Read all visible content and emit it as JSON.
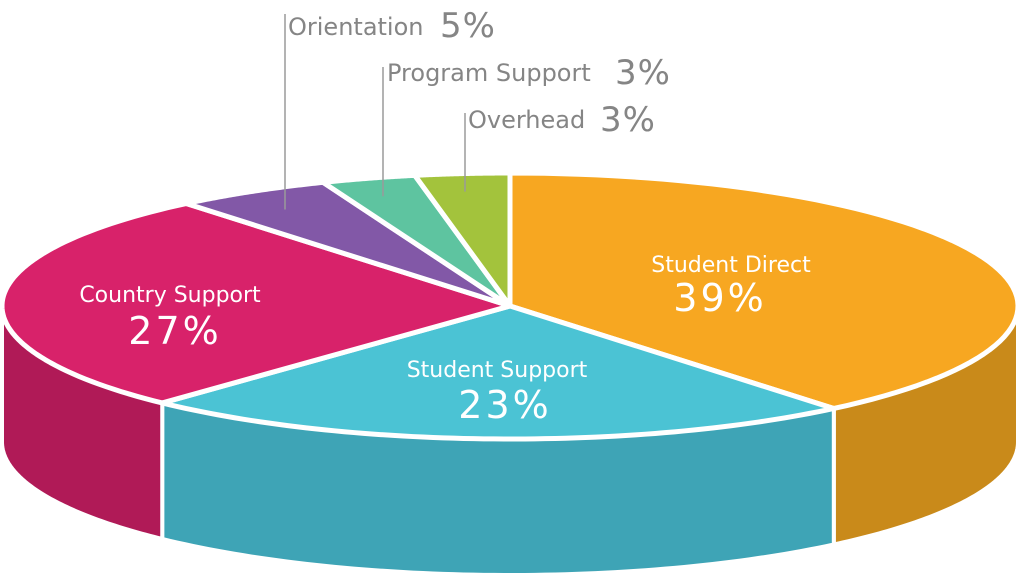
{
  "chart_data": {
    "type": "pie",
    "title": "",
    "slices": [
      {
        "name": "Student Direct",
        "value": 39,
        "label": "39%",
        "color": "#f7a721",
        "side_color": "#c98a1a"
      },
      {
        "name": "Student Support",
        "value": 23,
        "label": "23%",
        "color": "#4bc3d4",
        "side_color": "#3ea4b6"
      },
      {
        "name": "Country Support",
        "value": 27,
        "label": "27%",
        "color": "#d8226a",
        "side_color": "#b01a57"
      },
      {
        "name": "Orientation",
        "value": 5,
        "label": "5%",
        "color": "#8258a7",
        "side_color": "#6a4789"
      },
      {
        "name": "Program Support",
        "value": 3,
        "label": "3%",
        "color": "#5ec4a0",
        "side_color": "#4aa383"
      },
      {
        "name": "Overhead",
        "value": 3,
        "label": "3%",
        "color": "#a3c33c",
        "side_color": "#86a131"
      }
    ]
  }
}
